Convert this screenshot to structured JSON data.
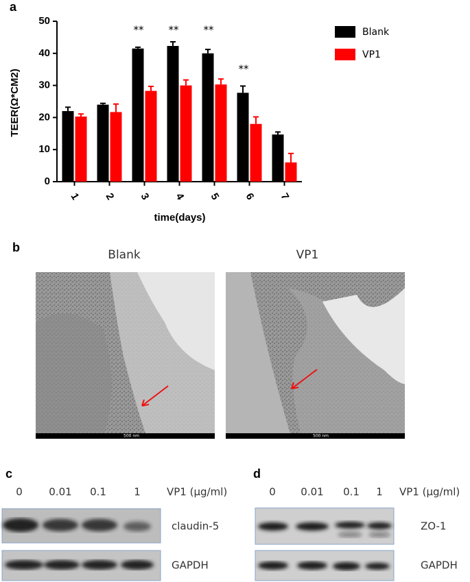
{
  "chart_data": {
    "type": "bar",
    "panel_label": "a",
    "y_label": "TEER(Ω*CM2)",
    "x_label": "time(days)",
    "categories": [
      "1",
      "2",
      "3",
      "4",
      "5",
      "6",
      "7"
    ],
    "series": [
      {
        "name": "Blank",
        "color": "#000000",
        "values": [
          22,
          24,
          41.5,
          42.3,
          40,
          27.7,
          14.7
        ],
        "errors": [
          1.2,
          0.4,
          0.4,
          1.3,
          1.2,
          2.1,
          0.8
        ]
      },
      {
        "name": "VP1",
        "color": "#ff0000",
        "values": [
          20.3,
          21.7,
          28.3,
          30,
          30.3,
          18,
          6
        ],
        "errors": [
          0.8,
          2.5,
          1.4,
          1.7,
          1.7,
          2.2,
          2.8
        ]
      }
    ],
    "annotations": [
      {
        "text": "**",
        "x": "3"
      },
      {
        "text": "**",
        "x": "4"
      },
      {
        "text": "**",
        "x": "5"
      },
      {
        "text": "**",
        "x": "6"
      }
    ],
    "ylim": [
      0,
      50
    ],
    "yticks": [
      0,
      10,
      20,
      30,
      40,
      50
    ],
    "legend": "top-right"
  },
  "panel_b": {
    "label": "b",
    "left_title": "Blank",
    "right_title": "VP1",
    "left_scale": "500 nm",
    "right_scale": "500 nm"
  },
  "panel_c": {
    "label": "c",
    "lanes": [
      "0",
      "0.01",
      "0.1",
      "1"
    ],
    "treatment": "VP1 (μg/ml)",
    "blots": [
      "claudin-5",
      "GAPDH"
    ]
  },
  "panel_d": {
    "label": "d",
    "lanes": [
      "0",
      "0.01",
      "0.1",
      "1"
    ],
    "treatment": "VP1 (μg/ml)",
    "blots": [
      "ZO-1",
      "GAPDH"
    ]
  }
}
